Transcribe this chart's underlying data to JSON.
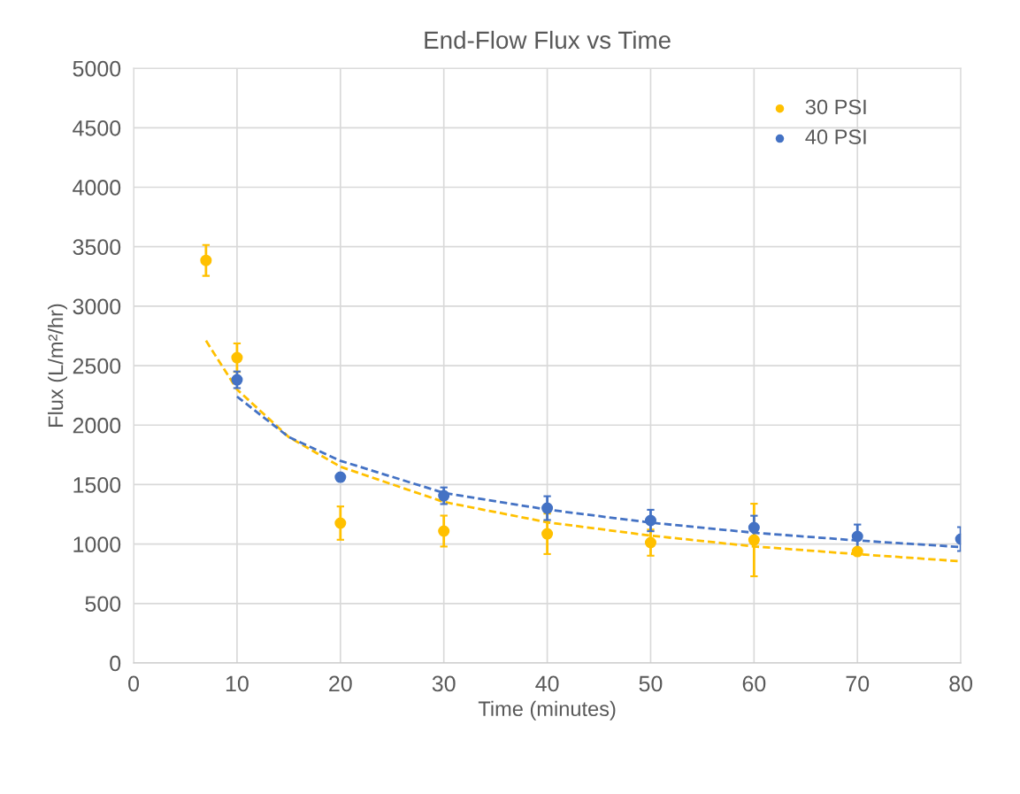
{
  "chart_data": {
    "type": "scatter",
    "title": "End-Flow Flux vs Time",
    "xlabel": "Time (minutes)",
    "ylabel": "Flux (L/m²/hr)",
    "xlim": [
      0,
      80
    ],
    "xticks": [
      0,
      10,
      20,
      30,
      40,
      50,
      60,
      70,
      80
    ],
    "ylim": [
      0,
      5000
    ],
    "yticks": [
      0,
      500,
      1000,
      1500,
      2000,
      2500,
      3000,
      3500,
      4000,
      4500,
      5000
    ],
    "grid": true,
    "legend": "top right",
    "marker": "circle",
    "series": [
      {
        "name": "30 PSI",
        "color": "#ffc000",
        "x": [
          7,
          10,
          20,
          30,
          40,
          50,
          60,
          70
        ],
        "values": [
          3385,
          2567,
          1176,
          1109,
          1086,
          1012,
          1034,
          937
        ],
        "errors": [
          130,
          120,
          140,
          130,
          170,
          110,
          305,
          null
        ]
      },
      {
        "name": "40 PSI",
        "color": "#4472c4",
        "x": [
          10,
          20,
          30,
          40,
          50,
          60,
          70,
          80
        ],
        "values": [
          2381,
          1562,
          1406,
          1302,
          1198,
          1138,
          1064,
          1042
        ],
        "errors": [
          70,
          null,
          70,
          100,
          90,
          100,
          100,
          100
        ]
      },
      {
        "type": "line",
        "line_style": "dashed",
        "marker": "none",
        "color": "#ffc000",
        "x": [
          7,
          10,
          15,
          20,
          30,
          40,
          50,
          60,
          70,
          80
        ],
        "values": [
          2710,
          2300,
          1900,
          1650,
          1354,
          1183,
          1071,
          980,
          915,
          855
        ]
      },
      {
        "type": "line",
        "line_style": "dashed",
        "marker": "none",
        "color": "#4472c4",
        "x": [
          10,
          15,
          20,
          30,
          40,
          50,
          60,
          70,
          80
        ],
        "values": [
          2240,
          1900,
          1700,
          1430,
          1290,
          1180,
          1095,
          1030,
          975
        ]
      }
    ]
  }
}
